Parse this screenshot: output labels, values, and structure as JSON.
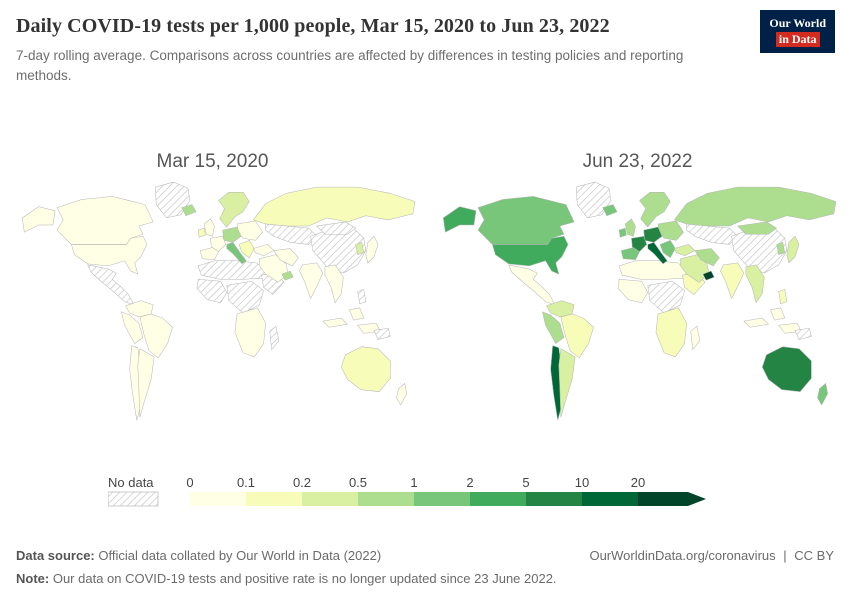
{
  "theme": {
    "logo-bg": "#002147",
    "logo-accent": "#d42b21",
    "title-color": "#333333",
    "muted": "#6e6e6e"
  },
  "header": {
    "title": "Daily COVID-19 tests per 1,000 people, Mar 15, 2020 to Jun 23, 2022",
    "subtitle": "7-day rolling average. Comparisons across countries are affected by differences in testing policies and reporting methods.",
    "logo": {
      "line1": "Our World",
      "line2": "in Data"
    }
  },
  "legend": {
    "no_data_label": "No data",
    "ticks": [
      "0",
      "0.1",
      "0.2",
      "0.5",
      "1",
      "2",
      "5",
      "10",
      "20"
    ],
    "colors": [
      "#ffffe5",
      "#f7fcb9",
      "#d9f0a3",
      "#addd8e",
      "#78c679",
      "#41ab5d",
      "#238443",
      "#006837",
      "#004529"
    ]
  },
  "footer": {
    "datasource_label": "Data source:",
    "datasource_text": "Official data collated by Our World in Data (2022)",
    "note_label": "Note:",
    "note_text": "Our data on COVID-19 tests and positive rate is no longer updated since 23 June 2022.",
    "link": "OurWorldinData.org/coronavirus",
    "separator": "|",
    "license": "CC BY"
  },
  "chart_data": {
    "type": "choropleth",
    "title": "Daily COVID-19 tests per 1,000 people, Mar 15, 2020 to Jun 23, 2022",
    "unit": "daily tests per 1,000 people (7-day rolling average)",
    "no_data_style": "gray-diagonal-hatch",
    "legend_bins": [
      {
        "range": "0-0.1",
        "color": "#ffffe5"
      },
      {
        "range": "0.1-0.2",
        "color": "#f7fcb9"
      },
      {
        "range": "0.2-0.5",
        "color": "#d9f0a3"
      },
      {
        "range": "0.5-1",
        "color": "#addd8e"
      },
      {
        "range": "1-2",
        "color": "#78c679"
      },
      {
        "range": "2-5",
        "color": "#41ab5d"
      },
      {
        "range": "5-10",
        "color": "#238443"
      },
      {
        "range": "10-20",
        "color": "#006837"
      },
      {
        "range": "20+",
        "color": "#004529"
      }
    ],
    "panels": [
      {
        "label": "Mar 15, 2020",
        "fills": {
          "russia": "#f7fcb9",
          "canada": "#ffffe5",
          "usa": "#ffffe5",
          "alaska": "#ffffe5",
          "greenland": "url(#hatch)",
          "mexico": "url(#hatch)",
          "colombia": "#ffffe5",
          "brazil": "#ffffe5",
          "peru": "#ffffe5",
          "chile": "#ffffe5",
          "argentina": "#ffffe5",
          "northafrica": "url(#hatch)",
          "westafrica": "url(#hatch)",
          "centralafrica": "url(#hatch)",
          "eastafrica": "url(#hatch)",
          "southernafrica": "#ffffe5",
          "madagascar": "url(#hatch)",
          "scandinavia": "#d9f0a3",
          "easterneurope": "#ffffe5",
          "centraleurope": "#addd8e",
          "france": "#ffffe5",
          "iberia": "#ffffe5",
          "italy": "#78c679",
          "balkans": "#f7fcb9",
          "uk": "#ffffe5",
          "ireland": "#f7fcb9",
          "iceland": "#addd8e",
          "turkey": "#ffffe5",
          "saudi": "#ffffe5",
          "iran": "#ffffe5",
          "gulf": "#addd8e",
          "centralasia": "url(#hatch)",
          "china": "url(#hatch)",
          "mongolia": "url(#hatch)",
          "india": "#ffffe5",
          "seasia": "#ffffe5",
          "indonesia": "#ffffe5",
          "philippines": "url(#hatch)",
          "japan": "#ffffe5",
          "korea": "#d9f0a3",
          "australia": "#f7fcb9",
          "newzealand": "#ffffe5",
          "png": "url(#hatch)"
        }
      },
      {
        "label": "Jun 23, 2022",
        "fills": {
          "russia": "#addd8e",
          "canada": "#78c679",
          "usa": "#41ab5d",
          "alaska": "#41ab5d",
          "greenland": "url(#hatch)",
          "mexico": "#ffffe5",
          "colombia": "#d9f0a3",
          "brazil": "#f7fcb9",
          "peru": "#addd8e",
          "chile": "#006837",
          "argentina": "#d9f0a3",
          "northafrica": "#ffffe5",
          "westafrica": "#ffffe5",
          "centralafrica": "url(#hatch)",
          "eastafrica": "#f7fcb9",
          "southernafrica": "#f7fcb9",
          "madagascar": "#ffffe5",
          "scandinavia": "#addd8e",
          "easterneurope": "#addd8e",
          "centraleurope": "#238443",
          "france": "#238443",
          "iberia": "#78c679",
          "italy": "#006837",
          "balkans": "#78c679",
          "uk": "#addd8e",
          "ireland": "#78c679",
          "iceland": "#78c679",
          "turkey": "#d9f0a3",
          "saudi": "#d9f0a3",
          "iran": "#addd8e",
          "gulf": "#004529",
          "centralasia": "url(#hatch)",
          "china": "url(#hatch)",
          "mongolia": "#addd8e",
          "india": "#f7fcb9",
          "seasia": "#d9f0a3",
          "indonesia": "#ffffe5",
          "philippines": "#f7fcb9",
          "japan": "#d9f0a3",
          "korea": "#addd8e",
          "australia": "#238443",
          "newzealand": "#78c679",
          "png": "url(#hatch)"
        }
      }
    ]
  }
}
